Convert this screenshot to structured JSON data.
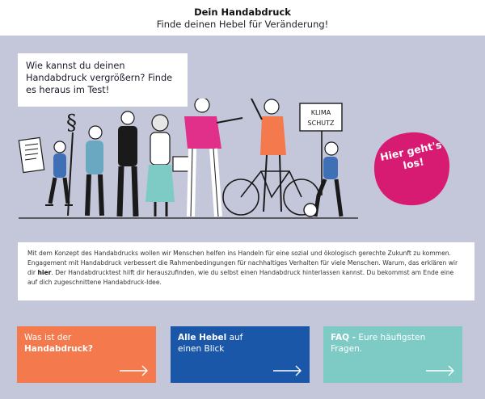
{
  "header": {
    "title": "Dein Handabdruck",
    "subtitle": "Finde deinen Hebel für Veränderung!"
  },
  "question": "Wie kannst du deinen Handabdruck vergrößern? Finde es heraus im Test!",
  "illustration": {
    "sign_line1": "KLIMA",
    "sign_line2": "SCHUTZ",
    "paragraph_symbol": "§"
  },
  "cta": {
    "line1": "Hier geht's",
    "line2": "los!",
    "color": "#d81b72"
  },
  "info": {
    "part1": "Mit dem Konzept des Handabdrucks wollen wir Menschen helfen ins Handeln  für eine sozial und ökologisch gerechte Zukunft zu kommen. Engagement mit Handabdruck verbessert die Rahmenbedingungen für nachhaltiges Verhalten für viele Menschen. Warum, das erklären wir dir ",
    "link": "hier",
    "part2": ". Der Handabdrucktest hilft dir herauszufinden, wie du selbst einen Handabdruck hinterlassen kannst. Du bekommst am Ende eine auf dich zugeschnittene Handabdruck-Idee."
  },
  "tiles": [
    {
      "line1": "Was ist der",
      "bold": "Handabdruck?",
      "color": "#f47a4d"
    },
    {
      "bold": "Alle Hebel",
      "rest": " auf",
      "line2": "einen Blick",
      "color": "#1a57a8"
    },
    {
      "bold": "FAQ -",
      "rest": " Eure häufigsten Fragen.",
      "color": "#7ecbc6"
    }
  ]
}
